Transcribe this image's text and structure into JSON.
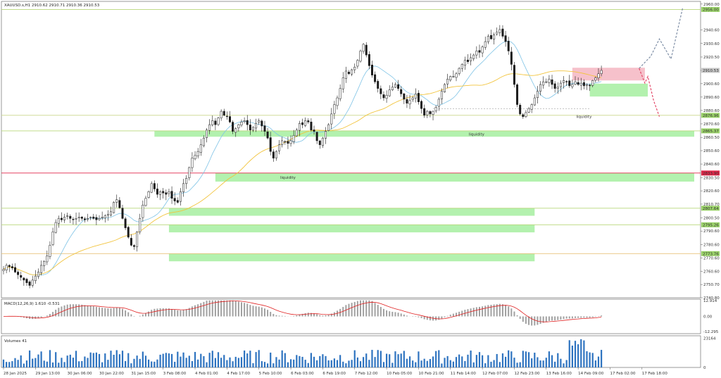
{
  "header": {
    "symbol_line": "XAUUSD.s,H1  2910.62 2910.71 2910.36 2910.53"
  },
  "price_axis": {
    "ticks": [
      "2960.00",
      "2940.60",
      "2930.60",
      "2920.50",
      "2910.50",
      "2900.60",
      "2890.60",
      "2880.60",
      "2870.60",
      "2860.50",
      "2850.60",
      "2840.60",
      "2830.50",
      "2820.60",
      "2810.70",
      "2800.50",
      "2790.60",
      "2780.60",
      "2770.60",
      "2760.60",
      "2750.70",
      "2740.80"
    ],
    "tick_values": [
      2960.0,
      2940.6,
      2930.6,
      2920.5,
      2910.5,
      2900.6,
      2890.6,
      2880.6,
      2870.6,
      2860.5,
      2850.6,
      2840.6,
      2830.5,
      2820.6,
      2810.7,
      2800.5,
      2790.6,
      2780.6,
      2770.6,
      2760.6,
      2750.7,
      2740.8
    ],
    "range": [
      2740.8,
      2962.0
    ],
    "badges": [
      {
        "text": "2956.00",
        "value": 2956.0,
        "color": "#9bd36a"
      },
      {
        "text": "2910.53",
        "value": 2910.53,
        "color": "#c8c8c8"
      },
      {
        "text": "2876.96",
        "value": 2876.96,
        "color": "#9bd36a"
      },
      {
        "text": "2865.37",
        "value": 2865.37,
        "color": "#9bd36a"
      },
      {
        "text": "2833.90",
        "value": 2833.9,
        "color": "#e0284a"
      },
      {
        "text": "2807.64",
        "value": 2807.64,
        "color": "#9bd36a"
      },
      {
        "text": "2795.26",
        "value": 2795.26,
        "color": "#9bd36a"
      },
      {
        "text": "2773.76",
        "value": 2773.76,
        "color": "#9bd36a"
      }
    ]
  },
  "levels": [
    {
      "value": 2956.0,
      "color": "#b8d77a"
    },
    {
      "value": 2876.96,
      "color": "#c9d88a"
    },
    {
      "value": 2865.37,
      "color": "#b8d77a"
    },
    {
      "value": 2833.9,
      "color": "#e0284a"
    },
    {
      "value": 2807.64,
      "color": "#b8d77a"
    },
    {
      "value": 2795.26,
      "color": "#b8d77a"
    },
    {
      "value": 2773.76,
      "color": "#e8c27a"
    }
  ],
  "zones": {
    "green_color": "#a6eea0",
    "pink_color": "#f4b6c2",
    "demand": [
      {
        "from_bar": 52,
        "to_bar": 238,
        "top": 2865.37,
        "bottom": 2861.0
      },
      {
        "from_bar": 73,
        "to_bar": 238,
        "top": 2833.9,
        "bottom": 2827.5
      },
      {
        "from_bar": 57,
        "to_bar": 183,
        "top": 2807.64,
        "bottom": 2802.0
      },
      {
        "from_bar": 57,
        "to_bar": 183,
        "top": 2795.26,
        "bottom": 2789.6
      },
      {
        "from_bar": 57,
        "to_bar": 183,
        "top": 2773.76,
        "bottom": 2768.0
      },
      {
        "from_bar": 202,
        "to_bar": 222,
        "top": 2900.6,
        "bottom": 2891.0
      }
    ],
    "supply": [
      {
        "from_bar": 196,
        "to_bar": 221,
        "top": 2912.5,
        "bottom": 2903.0
      }
    ]
  },
  "annotations": [
    {
      "text": "liquidity",
      "bar": 163,
      "value": 2862.0
    },
    {
      "text": "liquidity",
      "bar": 98,
      "value": 2829.5
    },
    {
      "text": "liquidity",
      "bar": 200,
      "value": 2875.0
    }
  ],
  "dashed_lines": [
    {
      "from_bar": 148,
      "to_bar": 202,
      "value": 2882.0,
      "color": "#888888"
    }
  ],
  "projections": [
    {
      "color": "#7f8fa6",
      "points": [
        [
          219,
          2912
        ],
        [
          223,
          2921
        ],
        [
          226,
          2934
        ],
        [
          230,
          2919
        ],
        [
          234,
          2957
        ]
      ]
    },
    {
      "color": "#e44a6a",
      "points": [
        [
          219,
          2912
        ],
        [
          221,
          2901
        ],
        [
          222,
          2906
        ],
        [
          224,
          2888
        ],
        [
          226,
          2876
        ]
      ]
    }
  ],
  "macd": {
    "label": "MACD(12,26,9) 1.610 -0.531",
    "ticks": [
      "12.914",
      "0.00",
      "-12.295"
    ],
    "tick_values": [
      12.914,
      0,
      -12.295
    ],
    "range": [
      -14,
      14
    ]
  },
  "volumes": {
    "label": "Volumes 41",
    "ticks": [
      "23164",
      "0"
    ],
    "tick_values": [
      23164,
      0
    ],
    "range": [
      0,
      25000
    ]
  },
  "time_axis": {
    "labels": [
      "28 Jan 2025",
      "29 Jan 13:00",
      "30 Jan 06:00",
      "30 Jan 22:00",
      "31 Jan 15:00",
      "3 Feb 08:00",
      "4 Feb 01:00",
      "4 Feb 17:00",
      "5 Feb 10:00",
      "6 Feb 03:00",
      "6 Feb 19:00",
      "7 Feb 12:00",
      "10 Feb 05:00",
      "10 Feb 21:00",
      "11 Feb 14:00",
      "12 Feb 07:00",
      "12 Feb 23:00",
      "13 Feb 16:00",
      "14 Feb 09:00",
      "17 Feb 02:00",
      "17 Feb 18:00"
    ],
    "label_bars": [
      0,
      11,
      22,
      33,
      44,
      55,
      66,
      77,
      88,
      99,
      110,
      121,
      132,
      143,
      154,
      165,
      176,
      187,
      198,
      209,
      220
    ]
  },
  "chart_data": {
    "type": "candlestick",
    "title": "XAUUSD.s,H1",
    "ohlc_last": {
      "open": 2910.62,
      "high": 2910.71,
      "low": 2910.36,
      "close": 2910.53
    },
    "ylim": [
      2740.8,
      2962.0
    ],
    "series": [
      {
        "name": "XAUUSD.s H1",
        "close": [
          2762,
          2765,
          2764,
          2763,
          2760,
          2758,
          2756,
          2754,
          2752,
          2750,
          2754,
          2757,
          2760,
          2765,
          2768,
          2772,
          2780,
          2790,
          2797,
          2800,
          2799,
          2801,
          2802,
          2800,
          2799,
          2800,
          2801,
          2800,
          2799,
          2800,
          2801,
          2800,
          2799,
          2800,
          2801,
          2802,
          2803,
          2805,
          2812,
          2814,
          2808,
          2800,
          2793,
          2786,
          2780,
          2779,
          2790,
          2800,
          2810,
          2815,
          2820,
          2826,
          2822,
          2818,
          2820,
          2819,
          2818,
          2820,
          2815,
          2813,
          2812,
          2820,
          2826,
          2830,
          2838,
          2845,
          2847,
          2850,
          2855,
          2860,
          2866,
          2870,
          2873,
          2870,
          2875,
          2880,
          2877,
          2876,
          2872,
          2865,
          2867,
          2870,
          2872,
          2873,
          2870,
          2866,
          2868,
          2871,
          2873,
          2869,
          2865,
          2860,
          2850,
          2845,
          2850,
          2855,
          2858,
          2857,
          2856,
          2858,
          2862,
          2866,
          2871,
          2870,
          2873,
          2872,
          2866,
          2865,
          2858,
          2855,
          2860,
          2865,
          2870,
          2878,
          2885,
          2890,
          2897,
          2905,
          2910,
          2908,
          2911,
          2913,
          2918,
          2925,
          2930,
          2922,
          2914,
          2907,
          2902,
          2897,
          2893,
          2890,
          2892,
          2896,
          2898,
          2900,
          2897,
          2893,
          2889,
          2886,
          2888,
          2890,
          2893,
          2887,
          2882,
          2877,
          2880,
          2878,
          2880,
          2883,
          2889,
          2895,
          2900,
          2904,
          2906,
          2906,
          2908,
          2912,
          2915,
          2918,
          2917,
          2920,
          2922,
          2925,
          2924,
          2928,
          2932,
          2936,
          2934,
          2937,
          2939,
          2941,
          2936,
          2932,
          2925,
          2915,
          2900,
          2885,
          2878,
          2876,
          2879,
          2882,
          2885,
          2890,
          2895,
          2900,
          2902,
          2902,
          2904,
          2900,
          2897,
          2898,
          2901,
          2903,
          2902,
          2899,
          2900,
          2902,
          2900,
          2901,
          2899,
          2900,
          2899,
          2903,
          2905,
          2908,
          2910.53
        ]
      },
      {
        "name": "MA fast",
        "color": "#7ec3e6"
      },
      {
        "name": "MA slow",
        "color": "#f2c43d"
      }
    ]
  }
}
